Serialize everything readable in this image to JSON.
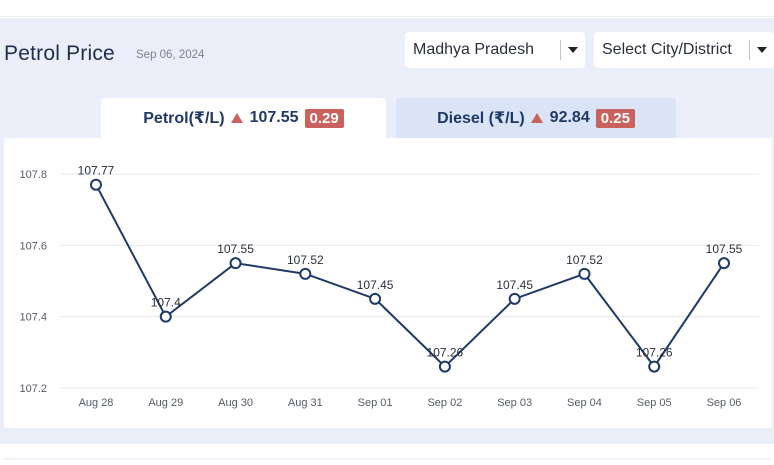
{
  "header": {
    "title": "Petrol Price",
    "date": "Sep 06, 2024"
  },
  "filters": {
    "state": "Madhya Pradesh",
    "city_placeholder": "Select City/District"
  },
  "tabs": [
    {
      "label": "Petrol(₹/L)",
      "price": "107.55",
      "change": "0.29",
      "trend": "up",
      "active": true
    },
    {
      "label": "Diesel (₹/L)",
      "price": "92.84",
      "change": "0.25",
      "trend": "up",
      "active": false
    }
  ],
  "colors": {
    "line": "#1f3a66",
    "up_arrow": "#c9615c",
    "change_badge": "#c9615c",
    "panel_bg": "#e9eef8",
    "inactive_tab": "#dbe4f7"
  },
  "chart_data": {
    "type": "line",
    "categories": [
      "Aug 28",
      "Aug 29",
      "Aug 30",
      "Aug 31",
      "Sep 01",
      "Sep 02",
      "Sep 03",
      "Sep 04",
      "Sep 05",
      "Sep 06"
    ],
    "series": [
      {
        "values": [
          107.77,
          107.4,
          107.55,
          107.52,
          107.45,
          107.26,
          107.45,
          107.52,
          107.26,
          107.55
        ]
      }
    ],
    "data_labels": [
      "107.77",
      "107.4",
      "107.55",
      "107.52",
      "107.45",
      "107.26",
      "107.45",
      "107.52",
      "107.26",
      "107.55"
    ],
    "yticks": [
      "107.2",
      "107.4",
      "107.6",
      "107.8"
    ],
    "ylim": [
      107.2,
      107.8
    ],
    "grid": true,
    "xlabel": "",
    "ylabel": ""
  }
}
